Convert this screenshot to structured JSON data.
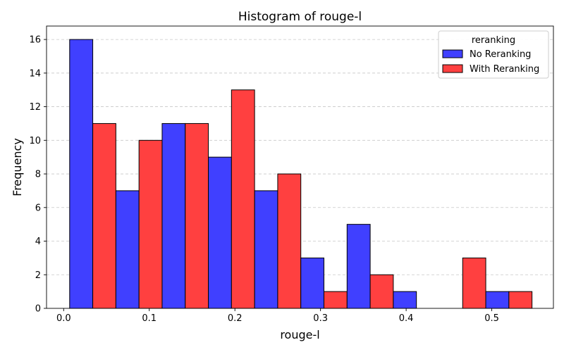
{
  "chart_data": {
    "type": "bar",
    "title": "Histogram of rouge-l",
    "xlabel": "rouge-l",
    "ylabel": "Frequency",
    "xlim": [
      -0.02,
      0.572
    ],
    "ylim": [
      0,
      16.8
    ],
    "xticks": [
      "0.0",
      "0.1",
      "0.2",
      "0.3",
      "0.4",
      "0.5"
    ],
    "xtick_values": [
      0.0,
      0.1,
      0.2,
      0.3,
      0.4,
      0.5
    ],
    "yticks": [
      "0",
      "2",
      "4",
      "6",
      "8",
      "10",
      "12",
      "14",
      "16"
    ],
    "ytick_values": [
      0,
      2,
      4,
      6,
      8,
      10,
      12,
      14,
      16
    ],
    "grid": "y-dashed",
    "bin_edges": [
      0.007,
      0.061,
      0.115,
      0.169,
      0.223,
      0.277,
      0.331,
      0.385,
      0.439,
      0.493,
      0.547
    ],
    "legend": {
      "title": "reranking",
      "placement": "top-right"
    },
    "series": [
      {
        "name": "No Reranking",
        "color": "#4040ff",
        "values": [
          16,
          7,
          11,
          9,
          7,
          3,
          5,
          1,
          0,
          1
        ]
      },
      {
        "name": "With Reranking",
        "color": "#ff4040",
        "values": [
          11,
          10,
          11,
          13,
          8,
          1,
          2,
          0,
          3,
          1
        ]
      }
    ]
  }
}
